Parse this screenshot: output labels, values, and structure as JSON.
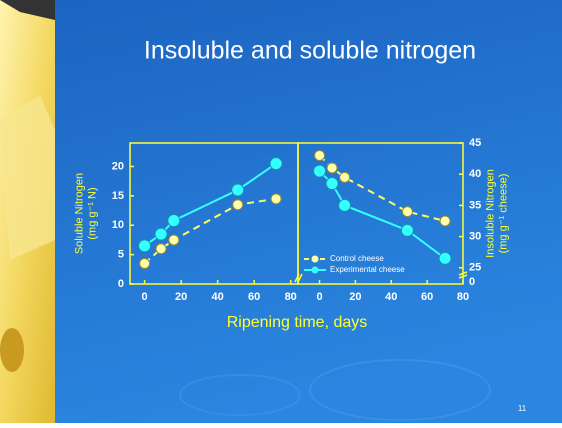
{
  "slide": {
    "title": "Insoluble and soluble nitrogen",
    "page_number": "11"
  },
  "x_axis_label": "Ripening time, days",
  "chart_data": [
    {
      "type": "line",
      "y_label": [
        "Soluble Nitrogen",
        "(mg g⁻¹ N)"
      ],
      "y_side": "left",
      "xlim": [
        -8,
        84
      ],
      "xticks": [
        0,
        20,
        40,
        60,
        80
      ],
      "ylim": [
        0,
        24
      ],
      "yticks": [
        0,
        5,
        10,
        15,
        20
      ],
      "series": [
        {
          "color": "#ffff66",
          "dashed": true,
          "x": [
            0,
            9,
            16,
            51,
            72
          ],
          "values": [
            3.5,
            6,
            7.5,
            13.5,
            14.5
          ]
        },
        {
          "color": "#33ffff",
          "dashed": false,
          "x": [
            0,
            9,
            16,
            51,
            72
          ],
          "values": [
            6.5,
            8.5,
            10.8,
            16,
            20.5
          ]
        }
      ]
    },
    {
      "type": "line",
      "y_label": [
        "Insoluble Nitrogen",
        "(mg g⁻¹ cheese)"
      ],
      "y_side": "right",
      "xlim": [
        -12,
        80
      ],
      "xticks": [
        0,
        20,
        40,
        60,
        80
      ],
      "ylim": [
        22.4,
        45
      ],
      "yticks": [
        25,
        30,
        35,
        40,
        45
      ],
      "axis_break_tick": 0,
      "series": [
        {
          "name": "Control cheese",
          "color": "#ffff66",
          "dashed": true,
          "x": [
            0,
            7,
            14,
            49,
            70
          ],
          "values": [
            43,
            41,
            39.5,
            34,
            32.5
          ]
        },
        {
          "name": "Experimental cheese",
          "color": "#33ffff",
          "dashed": false,
          "x": [
            0,
            7,
            14,
            49,
            70
          ],
          "values": [
            40.5,
            38.5,
            35,
            31,
            26.5
          ]
        }
      ]
    }
  ]
}
